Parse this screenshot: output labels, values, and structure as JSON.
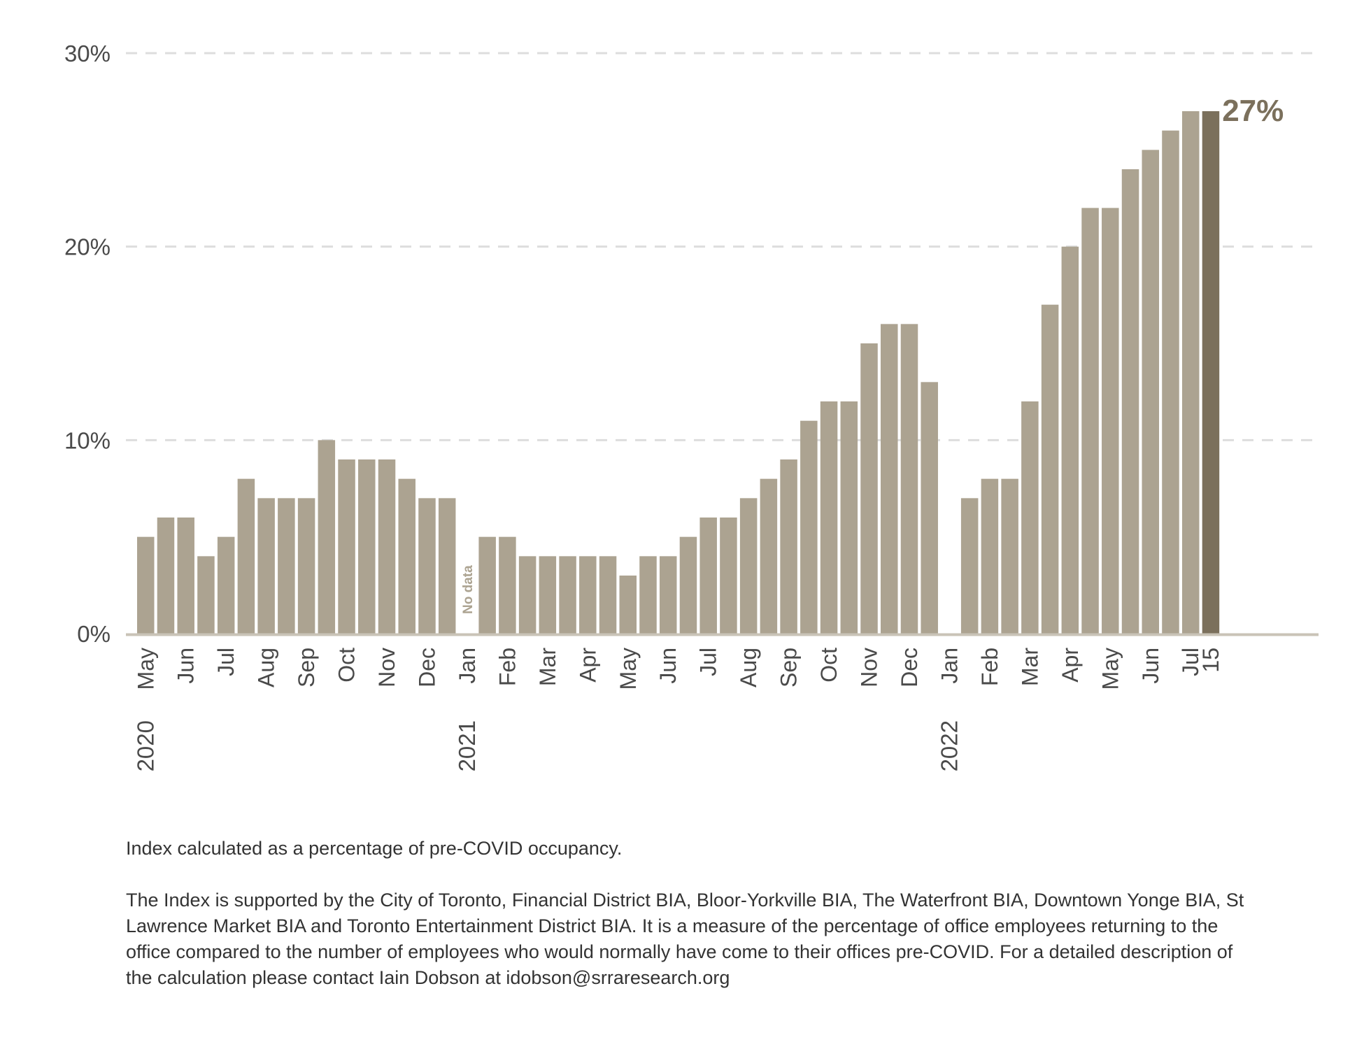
{
  "colors": {
    "bar": "#aca391",
    "highlight_bar": "#7b705c",
    "gridline": "#dddddd",
    "axis_line": "#c9c3b7",
    "text": "#4a4a4a"
  },
  "chart_data": {
    "type": "bar",
    "title": "",
    "xlabel": "",
    "ylabel": "",
    "ylim": [
      0,
      30
    ],
    "yticks": [
      0,
      10,
      20,
      30
    ],
    "ytick_labels": [
      "0%",
      "10%",
      "20%",
      "30%"
    ],
    "grid": "horizontal dashed",
    "values": [
      5,
      6,
      6,
      4,
      5,
      8,
      7,
      7,
      7,
      10,
      9,
      9,
      9,
      8,
      7,
      7,
      null,
      5,
      5,
      4,
      4,
      4,
      4,
      4,
      3,
      4,
      4,
      5,
      6,
      6,
      7,
      8,
      9,
      11,
      12,
      12,
      15,
      16,
      16,
      13,
      null,
      7,
      8,
      8,
      12,
      17,
      20,
      22,
      22,
      24,
      25,
      26,
      27,
      27
    ],
    "highlight_index": 53,
    "highlight_label": "27%",
    "no_data_index": 16,
    "no_data_label": "No data",
    "month_labels": [
      {
        "text": "May",
        "bar": 0
      },
      {
        "text": "Jun",
        "bar": 2
      },
      {
        "text": "Jul",
        "bar": 4
      },
      {
        "text": "Aug",
        "bar": 6
      },
      {
        "text": "Sep",
        "bar": 8
      },
      {
        "text": "Oct",
        "bar": 10
      },
      {
        "text": "Nov",
        "bar": 12
      },
      {
        "text": "Dec",
        "bar": 14
      },
      {
        "text": "Jan",
        "bar": 16
      },
      {
        "text": "Feb",
        "bar": 18
      },
      {
        "text": "Mar",
        "bar": 20
      },
      {
        "text": "Apr",
        "bar": 22
      },
      {
        "text": "May",
        "bar": 24
      },
      {
        "text": "Jun",
        "bar": 26
      },
      {
        "text": "Jul",
        "bar": 28
      },
      {
        "text": "Aug",
        "bar": 30
      },
      {
        "text": "Sep",
        "bar": 32
      },
      {
        "text": "Oct",
        "bar": 34
      },
      {
        "text": "Nov",
        "bar": 36
      },
      {
        "text": "Dec",
        "bar": 38
      },
      {
        "text": "Jan",
        "bar": 40
      },
      {
        "text": "Feb",
        "bar": 42
      },
      {
        "text": "Mar",
        "bar": 44
      },
      {
        "text": "Apr",
        "bar": 46
      },
      {
        "text": "May",
        "bar": 48
      },
      {
        "text": "Jun",
        "bar": 50
      },
      {
        "text": "Jul",
        "bar": 52
      },
      {
        "text": "15",
        "bar": 53
      }
    ],
    "year_labels": [
      {
        "text": "2020",
        "bar": 0
      },
      {
        "text": "2021",
        "bar": 16
      },
      {
        "text": "2022",
        "bar": 40
      }
    ]
  },
  "notes": {
    "line1": "Index calculated as a percentage of pre-COVID occupancy.",
    "line2": "The Index is supported by the City of Toronto, Financial District BIA, Bloor-Yorkville BIA, The Waterfront BIA, Downtown Yonge BIA, St Lawrence Market BIA and Toronto Entertainment District BIA. It is a measure of the percentage of office employees returning to the office compared to the number of employees who would normally have come to their offices pre-COVID. For a detailed description of the calculation please contact Iain Dobson at idobson@srraresearch.org"
  }
}
